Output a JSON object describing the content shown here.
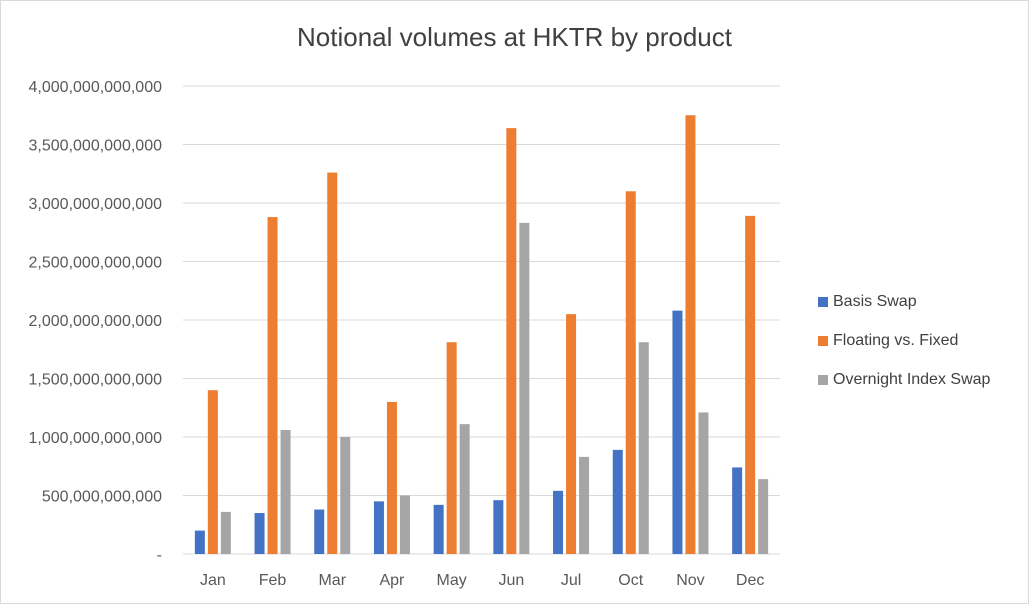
{
  "chart_data": {
    "type": "bar",
    "title": "Notional volumes at HKTR by product",
    "categories": [
      "Jan",
      "Feb",
      "Mar",
      "Apr",
      "May",
      "Jun",
      "Jul",
      "Oct",
      "Nov",
      "Dec"
    ],
    "series": [
      {
        "name": "Basis Swap",
        "color": "#4472C4",
        "values": [
          200000000000,
          350000000000,
          380000000000,
          450000000000,
          420000000000,
          460000000000,
          540000000000,
          890000000000,
          2080000000000,
          740000000000
        ]
      },
      {
        "name": "Floating vs. Fixed",
        "color": "#ED7D31",
        "values": [
          1400000000000,
          2880000000000,
          3260000000000,
          1300000000000,
          1810000000000,
          3640000000000,
          2050000000000,
          3100000000000,
          3750000000000,
          2890000000000
        ]
      },
      {
        "name": "Overnight Index Swap",
        "color": "#A5A5A5",
        "values": [
          360000000000,
          1060000000000,
          1000000000000,
          500000000000,
          1110000000000,
          2830000000000,
          830000000000,
          1810000000000,
          1210000000000,
          640000000000
        ]
      }
    ],
    "yticks": [
      0,
      500000000000,
      1000000000000,
      1500000000000,
      2000000000000,
      2500000000000,
      3000000000000,
      3500000000000,
      4000000000000
    ],
    "ytick_labels": [
      "-",
      "500,000,000,000",
      "1,000,000,000,000",
      "1,500,000,000,000",
      "2,000,000,000,000",
      "2,500,000,000,000",
      "3,000,000,000,000",
      "3,500,000,000,000",
      "4,000,000,000,000"
    ],
    "ylim": [
      0,
      4000000000000
    ],
    "xlabel": "",
    "ylabel": "",
    "grid": true,
    "legend_position": "right"
  }
}
